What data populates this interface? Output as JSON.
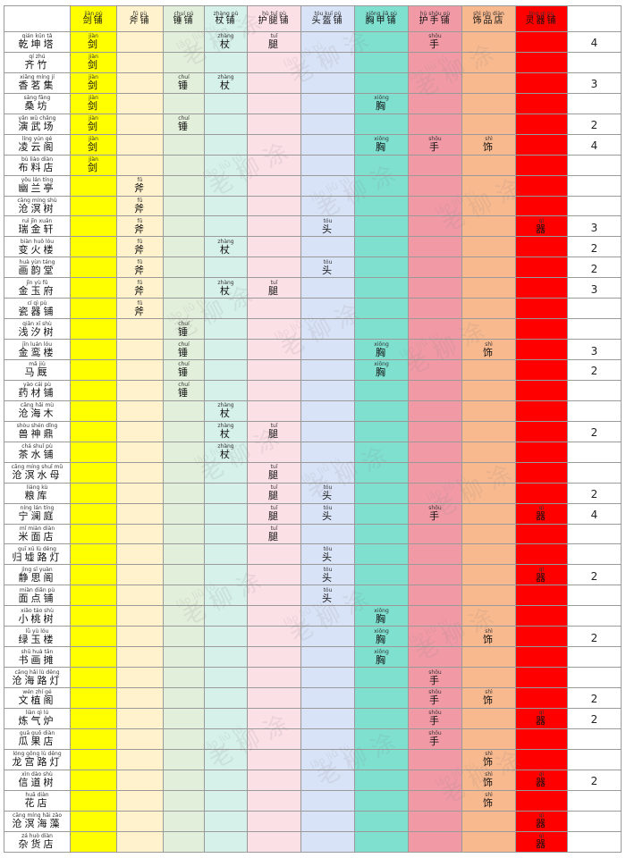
{
  "columns": [
    {
      "key": "jian",
      "label": "剑铺",
      "pinyin": "jiàn pù",
      "color": "#ffff00"
    },
    {
      "key": "qi",
      "label": "斧铺",
      "pinyin": "fǔ pù",
      "color": "#fff2cc"
    },
    {
      "key": "chui",
      "label": "锤铺",
      "pinyin": "chuí pù",
      "color": "#e2efda"
    },
    {
      "key": "zhang",
      "label": "杖铺",
      "pinyin": "zhàng pù",
      "color": "#d6f0ea"
    },
    {
      "key": "tui",
      "label": "护腿铺",
      "pinyin": "hù tuǐ pù",
      "color": "#fbe0e6"
    },
    {
      "key": "tou",
      "label": "头盔铺",
      "pinyin": "tóu kuī pù",
      "color": "#d9e3f7"
    },
    {
      "key": "xiong",
      "label": "胸甲铺",
      "pinyin": "xiōng jiǎ pù",
      "color": "#7fe0d0"
    },
    {
      "key": "shou",
      "label": "护手铺",
      "pinyin": "hù shǒu pù",
      "color": "#f19aa6"
    },
    {
      "key": "shi",
      "label": "饰品店",
      "pinyin": "shì pǐn diàn",
      "color": "#f8b98f"
    },
    {
      "key": "qiqi",
      "label": "灵器铺",
      "pinyin": "líng qì pù",
      "color": "#ff0000"
    }
  ],
  "marks": {
    "jian": {
      "char": "剑",
      "pinyin": "jiàn"
    },
    "qi": {
      "char": "斧",
      "pinyin": "fǔ"
    },
    "chui": {
      "char": "锤",
      "pinyin": "chuí"
    },
    "zhang": {
      "char": "杖",
      "pinyin": "zhàng"
    },
    "tui": {
      "char": "腿",
      "pinyin": "tuǐ"
    },
    "tou": {
      "char": "头",
      "pinyin": "tóu"
    },
    "xiong": {
      "char": "胸",
      "pinyin": "xiōng"
    },
    "shou": {
      "char": "手",
      "pinyin": "shǒu"
    },
    "shi": {
      "char": "饰",
      "pinyin": "shì"
    },
    "qiqi": {
      "char": "器",
      "pinyin": "qì"
    }
  },
  "rows": [
    {
      "name": "乾坤塔",
      "pinyin": "qián kūn tǎ",
      "marks": [
        "jian",
        "zhang",
        "tui",
        "shou"
      ],
      "count": "4"
    },
    {
      "name": "齐竹",
      "pinyin": "qí zhú",
      "marks": [
        "jian"
      ],
      "count": ""
    },
    {
      "name": "香茗集",
      "pinyin": "xiāng míng jí",
      "marks": [
        "jian",
        "chui",
        "zhang"
      ],
      "count": "3"
    },
    {
      "name": "桑坊",
      "pinyin": "sāng fāng",
      "marks": [
        "jian",
        "xiong"
      ],
      "count": ""
    },
    {
      "name": "演武场",
      "pinyin": "yǎn wǔ chǎng",
      "marks": [
        "jian",
        "chui"
      ],
      "count": "2"
    },
    {
      "name": "凌云阁",
      "pinyin": "líng yún gé",
      "marks": [
        "jian",
        "xiong",
        "shou",
        "shi"
      ],
      "count": "4"
    },
    {
      "name": "布料店",
      "pinyin": "bù liào diàn",
      "marks": [
        "jian"
      ],
      "count": ""
    },
    {
      "name": "幽兰亭",
      "pinyin": "yōu lán tíng",
      "marks": [
        "qi"
      ],
      "count": ""
    },
    {
      "name": "沧溟树",
      "pinyin": "cāng míng shù",
      "marks": [
        "qi"
      ],
      "count": ""
    },
    {
      "name": "瑞金轩",
      "pinyin": "ruì jīn xuān",
      "marks": [
        "qi",
        "tou",
        "qiqi"
      ],
      "count": "3"
    },
    {
      "name": "变火楼",
      "pinyin": "biàn huǒ lóu",
      "marks": [
        "qi",
        "zhang"
      ],
      "count": "2"
    },
    {
      "name": "画韵堂",
      "pinyin": "huà yùn táng",
      "marks": [
        "qi",
        "tou"
      ],
      "count": "2"
    },
    {
      "name": "金玉府",
      "pinyin": "jīn yù fǔ",
      "marks": [
        "qi",
        "zhang",
        "tui"
      ],
      "count": "3"
    },
    {
      "name": "瓷器铺",
      "pinyin": "cí qì pù",
      "marks": [
        "qi"
      ],
      "count": ""
    },
    {
      "name": "浅汐树",
      "pinyin": "qiǎn xī shù",
      "marks": [
        "chui"
      ],
      "count": ""
    },
    {
      "name": "金鸾楼",
      "pinyin": "jīn luán lóu",
      "marks": [
        "chui",
        "xiong",
        "shi"
      ],
      "count": "3"
    },
    {
      "name": "马厩",
      "pinyin": "mǎ jiù",
      "marks": [
        "chui",
        "xiong"
      ],
      "count": "2"
    },
    {
      "name": "药材铺",
      "pinyin": "yào cái pù",
      "marks": [
        "chui"
      ],
      "count": ""
    },
    {
      "name": "沧海木",
      "pinyin": "cāng hǎi mù",
      "marks": [
        "zhang"
      ],
      "count": ""
    },
    {
      "name": "兽神鼎",
      "pinyin": "shòu shén dǐng",
      "marks": [
        "zhang",
        "tui"
      ],
      "count": "2"
    },
    {
      "name": "茶水铺",
      "pinyin": "chá shuǐ pù",
      "marks": [
        "zhang"
      ],
      "count": ""
    },
    {
      "name": "沧溟水母",
      "pinyin": "cāng míng shuǐ mǔ",
      "marks": [
        "tui"
      ],
      "count": ""
    },
    {
      "name": "粮库",
      "pinyin": "liáng kù",
      "marks": [
        "tui",
        "tou"
      ],
      "count": "2"
    },
    {
      "name": "宁澜庭",
      "pinyin": "níng lán tíng",
      "marks": [
        "tui",
        "tou",
        "shou",
        "qiqi"
      ],
      "count": "4"
    },
    {
      "name": "米面店",
      "pinyin": "mǐ miàn diàn",
      "marks": [
        "tui"
      ],
      "count": ""
    },
    {
      "name": "归墟路灯",
      "pinyin": "guī xū lù dēng",
      "marks": [
        "tou"
      ],
      "count": ""
    },
    {
      "name": "静思阁",
      "pinyin": "jìng sī yuàn",
      "marks": [
        "tou",
        "qiqi"
      ],
      "count": "2"
    },
    {
      "name": "面点铺",
      "pinyin": "miàn diǎn pù",
      "marks": [
        "tou"
      ],
      "count": ""
    },
    {
      "name": "小桃树",
      "pinyin": "xiǎo táo shù",
      "marks": [
        "xiong"
      ],
      "count": ""
    },
    {
      "name": "绿玉楼",
      "pinyin": "lǜ yù lóu",
      "marks": [
        "xiong",
        "shi"
      ],
      "count": "2"
    },
    {
      "name": "书画摊",
      "pinyin": "shū huà tān",
      "marks": [
        "xiong"
      ],
      "count": ""
    },
    {
      "name": "沧海路灯",
      "pinyin": "cāng hǎi lù dēng",
      "marks": [
        "shou"
      ],
      "count": ""
    },
    {
      "name": "文植阁",
      "pinyin": "wén zhí gé",
      "marks": [
        "shou",
        "shi"
      ],
      "count": "2"
    },
    {
      "name": "炼气炉",
      "pinyin": "liàn qì lú",
      "marks": [
        "shou",
        "qiqi"
      ],
      "count": "2"
    },
    {
      "name": "瓜果店",
      "pinyin": "guā guǒ diàn",
      "marks": [
        "shou"
      ],
      "count": ""
    },
    {
      "name": "龙宫路灯",
      "pinyin": "lóng gōng lù dēng",
      "marks": [
        "shi"
      ],
      "count": ""
    },
    {
      "name": "信道树",
      "pinyin": "xìn dào shù",
      "marks": [
        "shi",
        "qiqi"
      ],
      "count": "2"
    },
    {
      "name": "花店",
      "pinyin": "huā diàn",
      "marks": [
        "shi"
      ],
      "count": ""
    },
    {
      "name": "沧溟海藻",
      "pinyin": "cāng míng hǎi zǎo",
      "marks": [
        "qiqi"
      ],
      "count": ""
    },
    {
      "name": "杂货店",
      "pinyin": "zá huò diàn",
      "marks": [
        "qiqi"
      ],
      "count": ""
    }
  ],
  "watermark": {
    "text": "老 柳 涂",
    "pinyin": "lǎo liǔ tú"
  }
}
